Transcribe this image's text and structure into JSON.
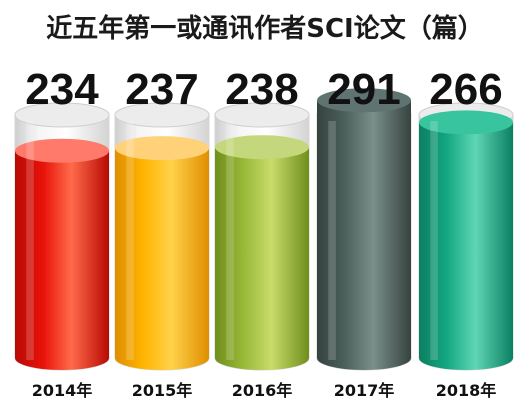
{
  "chart_data": {
    "type": "bar",
    "title": "近五年第一或通讯作者SCI论文（篇）",
    "categories": [
      "2014年",
      "2015年",
      "2016年",
      "2017年",
      "2018年"
    ],
    "values": [
      234,
      237,
      238,
      291,
      266
    ],
    "ylim": [
      0,
      350
    ],
    "xlabel": "",
    "ylabel": "",
    "grid": false,
    "legend": "none",
    "colors": [
      {
        "light": "#ff6b4a",
        "main": "#e8120a",
        "dark": "#b80a04",
        "top": "#ff7a6a"
      },
      {
        "light": "#ffd24a",
        "main": "#ffb400",
        "dark": "#e08e00",
        "top": "#ffd27a"
      },
      {
        "light": "#c8dc6a",
        "main": "#98b838",
        "dark": "#6f8e1c",
        "top": "#c4d77c"
      },
      {
        "light": "#7a8f8a",
        "main": "#4c605c",
        "dark": "#36433f",
        "top": "#5f7470"
      },
      {
        "light": "#5fd6b6",
        "main": "#14a882",
        "dark": "#0c7f62",
        "top": "#38c49f"
      }
    ]
  }
}
